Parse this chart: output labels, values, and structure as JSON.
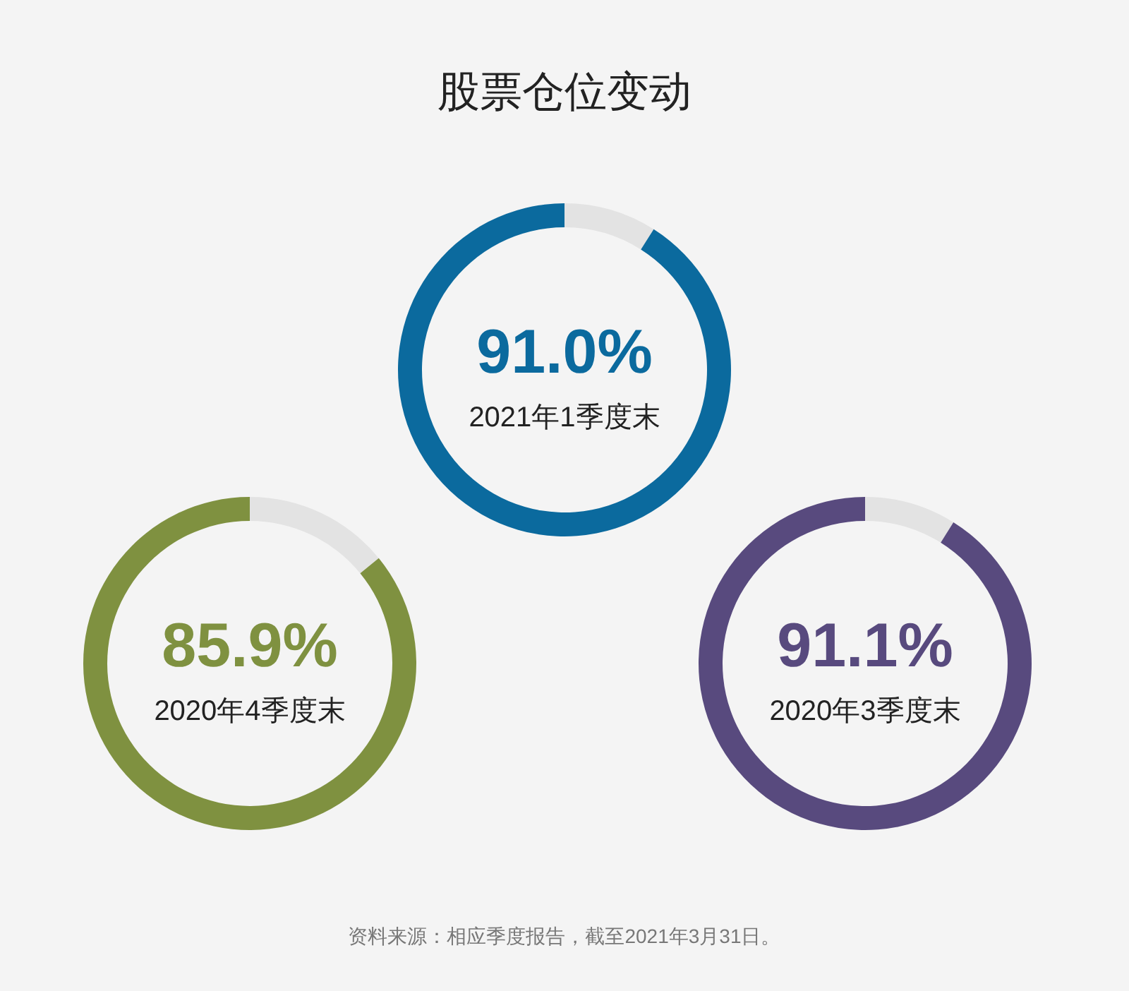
{
  "chart_data": [
    {
      "type": "donut",
      "title": "股票仓位变动",
      "subtitle": "2021年1季度末",
      "categories": [
        null,
        null
      ],
      "values": [
        9.0,
        91.0
      ],
      "colors": [
        "#e3e3e3",
        "#0b6a9e"
      ],
      "value_labels": [
        null,
        "91.0%"
      ]
    },
    {
      "type": "donut",
      "subtitle": "2020年4季度末",
      "categories": [
        null,
        null
      ],
      "values": [
        14.1,
        85.9
      ],
      "colors": [
        "#e3e3e3",
        "#7f9140"
      ],
      "value_labels": [
        null,
        "85.9%"
      ]
    },
    {
      "type": "donut",
      "subtitle": "2020年3季度末",
      "categories": [
        null,
        null
      ],
      "values": [
        8.9,
        91.1
      ],
      "colors": [
        "#e3e3e3",
        "#584a7e"
      ],
      "value_labels": [
        null,
        "91.1%"
      ],
      "annotations": [
        "资料来源：相应季度报告，截至2021年3月31日。"
      ]
    }
  ]
}
